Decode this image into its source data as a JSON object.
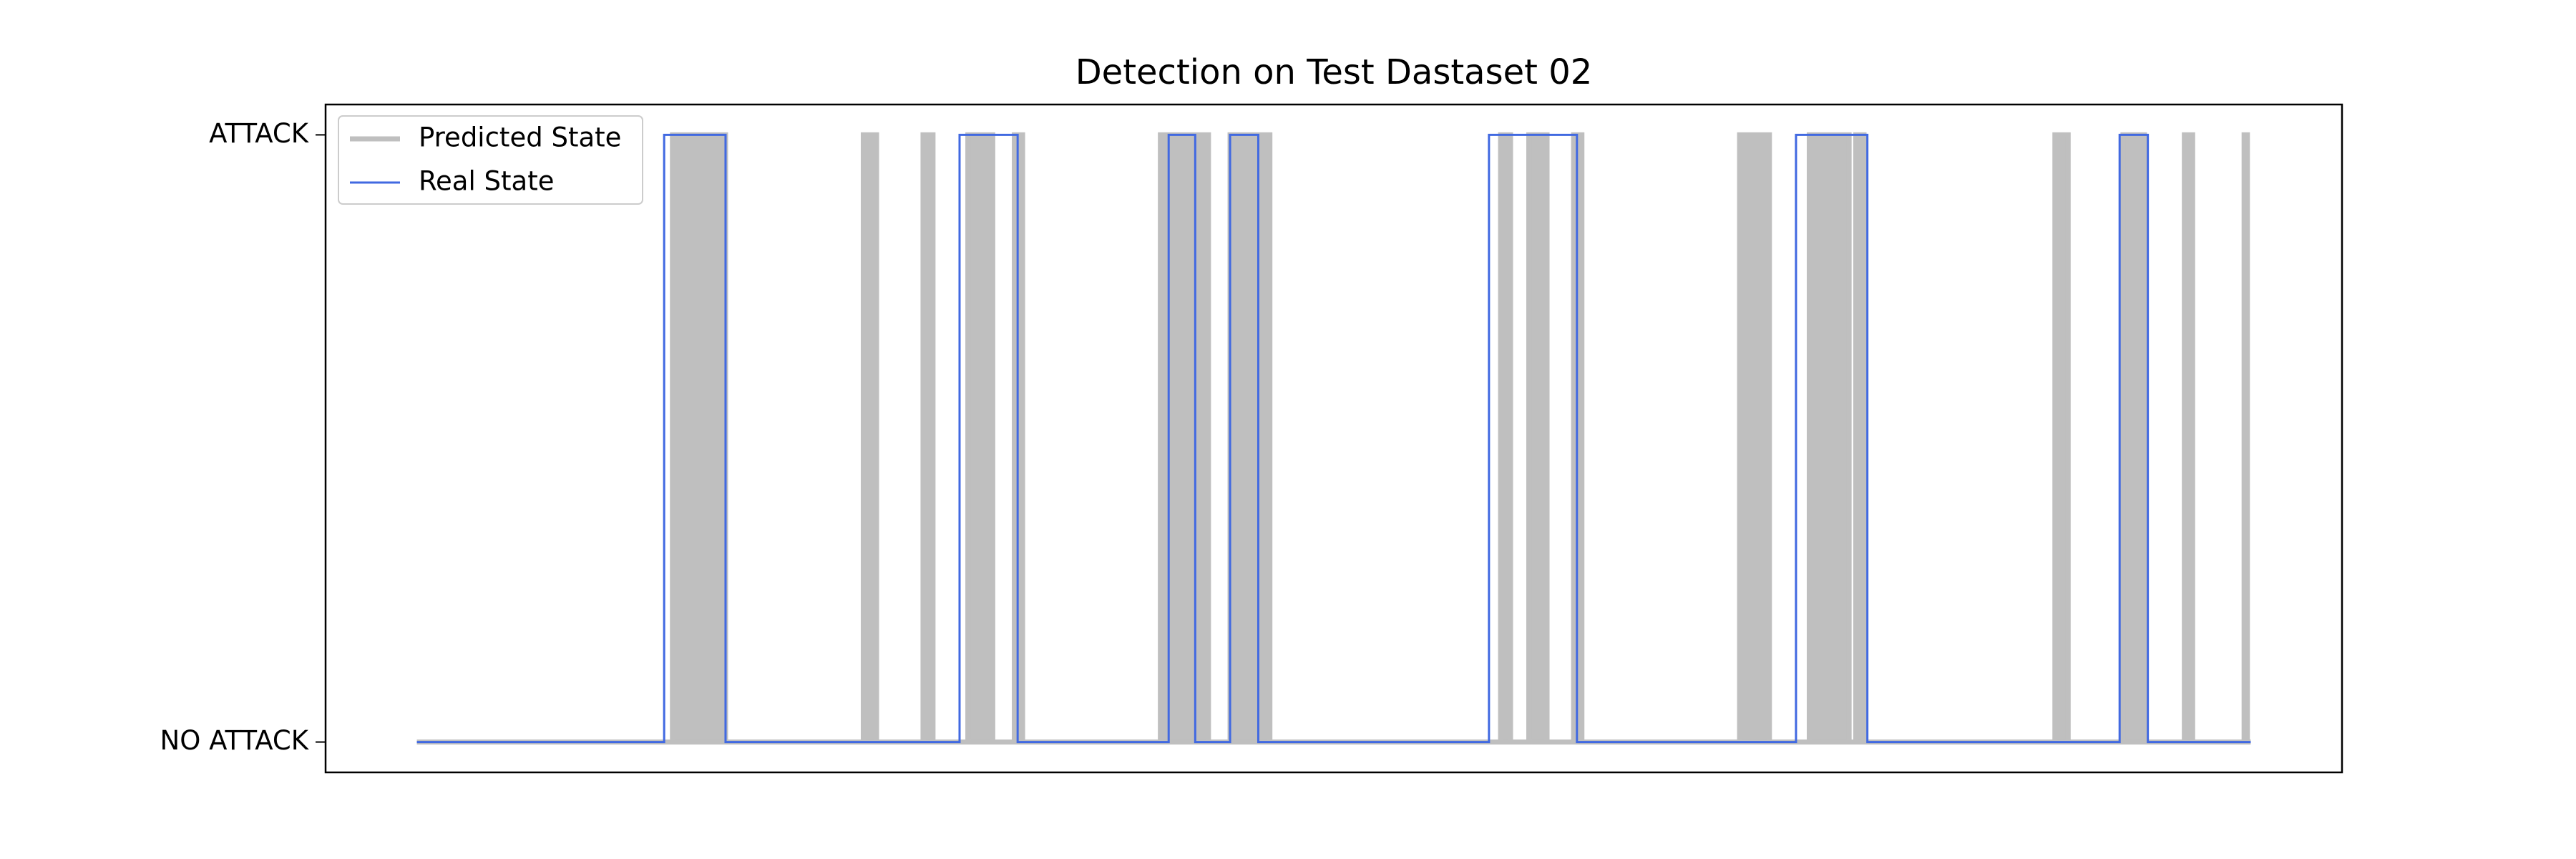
{
  "chart_data": {
    "type": "step",
    "title": "Detection on Test Dastaset 02",
    "xlim": [
      -55,
      1160
    ],
    "ylim": [
      -0.05,
      1.05
    ],
    "yticks": [
      {
        "value": 0,
        "label": "NO ATTACK"
      },
      {
        "value": 1,
        "label": "ATTACK"
      }
    ],
    "legend": "upper left",
    "series": [
      {
        "name": "Predicted State",
        "color": "#bfbfbf",
        "x": [
          0,
          154,
          186,
          269,
          277,
          305,
          311,
          332,
          347,
          360,
          365,
          448,
          477,
          490,
          514,
          653,
          659,
          670,
          681,
          697,
          702,
          797,
          815,
          839,
          863,
          867,
          872,
          987,
          995,
          1028,
          1041,
          1065,
          1070,
          1101,
          1103,
          1105
        ],
        "values": [
          0,
          1,
          0,
          1,
          0,
          1,
          0,
          1,
          0,
          1,
          0,
          1,
          0,
          1,
          0,
          1,
          0,
          1,
          0,
          1,
          0,
          1,
          0,
          1,
          0,
          1,
          0,
          1,
          0,
          1,
          0,
          1,
          0,
          1,
          0,
          0
        ]
      },
      {
        "name": "Real State",
        "color": "#4169e1",
        "x": [
          0,
          149,
          186,
          327,
          362,
          453,
          469,
          490,
          507,
          646,
          699,
          831,
          874,
          1026,
          1043,
          1105
        ],
        "values": [
          0,
          1,
          0,
          1,
          0,
          1,
          0,
          1,
          0,
          1,
          0,
          1,
          0,
          1,
          0,
          0
        ]
      }
    ]
  }
}
